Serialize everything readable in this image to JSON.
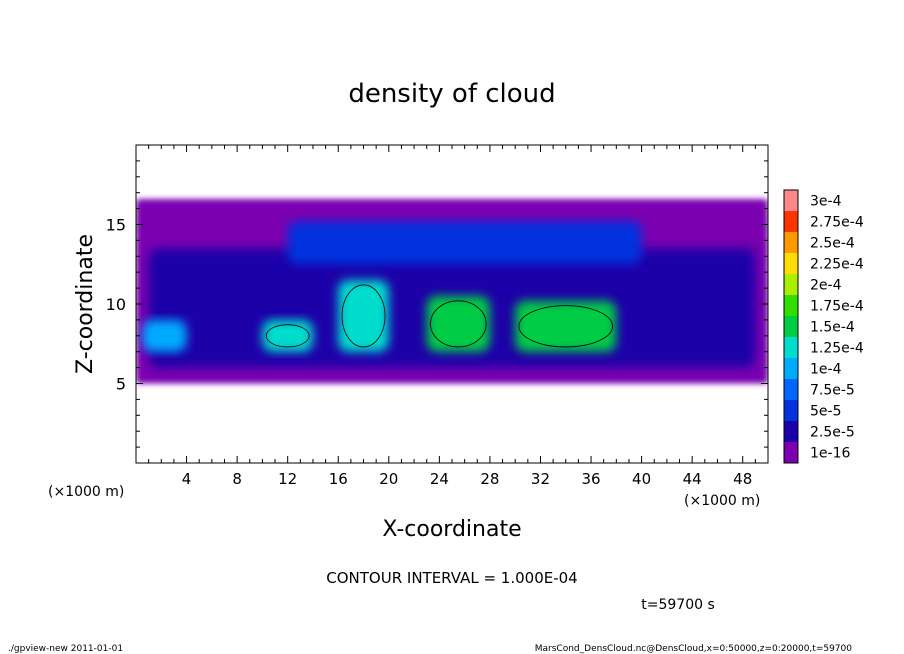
{
  "chart_data": {
    "type": "heatmap",
    "title": "density of cloud",
    "xlabel": "X-coordinate",
    "ylabel": "Z-coordinate",
    "x_unit_label": "(×1000 m)",
    "y_unit_label": "(×1000 m)",
    "xlim": [
      0,
      50
    ],
    "ylim": [
      0,
      20
    ],
    "x_ticks": [
      4,
      8,
      12,
      16,
      20,
      24,
      28,
      32,
      36,
      40,
      44,
      48
    ],
    "x_tick_labels": [
      "4",
      "8",
      "12",
      "16",
      "20",
      "24",
      "28",
      "32",
      "36",
      "40",
      "44",
      "48"
    ],
    "y_ticks": [
      5,
      10,
      15
    ],
    "y_tick_labels": [
      "5",
      "10",
      "15"
    ],
    "colorbar": {
      "labels": [
        "1e-16",
        "2.5e-5",
        "5e-5",
        "7.5e-5",
        "1e-4",
        "1.25e-4",
        "1.5e-4",
        "1.75e-4",
        "2e-4",
        "2.25e-4",
        "2.5e-4",
        "2.75e-4",
        "3e-4"
      ],
      "values": [
        1e-16,
        2.5e-05,
        5e-05,
        7.5e-05,
        0.0001,
        0.000125,
        0.00015,
        0.000175,
        0.0002,
        0.000225,
        0.00025,
        0.000275,
        0.0003
      ],
      "colors": [
        "#7a00b0",
        "#1a00a8",
        "#0033dd",
        "#0066ff",
        "#00aaff",
        "#00ddcc",
        "#00cc44",
        "#33dd00",
        "#aaee00",
        "#ffdd00",
        "#ff9900",
        "#ff3300",
        "#ff8888"
      ]
    },
    "regions": [
      {
        "x": [
          0,
          50
        ],
        "z": [
          5,
          16.6
        ],
        "level": "1e-16"
      },
      {
        "x": [
          1,
          49
        ],
        "z": [
          6,
          13.5
        ],
        "level": "2.5e-5"
      },
      {
        "x": [
          12,
          40
        ],
        "z": [
          12.5,
          15.2
        ],
        "level": "5e-5"
      },
      {
        "x": [
          0.5,
          4
        ],
        "z": [
          7,
          9
        ],
        "level": "1e-4"
      },
      {
        "x": [
          10,
          14
        ],
        "z": [
          7,
          9
        ],
        "level": "1.25e-4"
      },
      {
        "x": [
          16,
          20
        ],
        "z": [
          7,
          11.5
        ],
        "level": "1.25e-4"
      },
      {
        "x": [
          23,
          28
        ],
        "z": [
          7,
          10.5
        ],
        "level": "1.5e-4"
      },
      {
        "x": [
          30,
          38
        ],
        "z": [
          7,
          10.2
        ],
        "level": "1.5e-4"
      }
    ],
    "contour_interval_label": "CONTOUR INTERVAL = 1.000E-04",
    "time_label": "t=59700 s"
  },
  "footer": {
    "left": "./gpview-new  2011-01-01",
    "right": "MarsCond_DensCloud.nc@DensCloud,x=0:50000,z=0:20000,t=59700"
  }
}
